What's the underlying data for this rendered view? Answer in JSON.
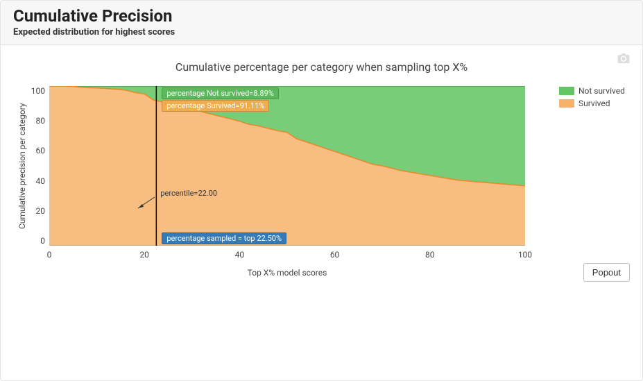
{
  "header": {
    "title": "Cumulative Precision",
    "subtitle": "Expected distribution for highest scores"
  },
  "chart": {
    "type": "area",
    "title": "Cumulative percentage per category when sampling top X%",
    "xlabel": "Top X% model scores",
    "ylabel": "Cumulative precision per category",
    "xlim": [
      0,
      100
    ],
    "ylim": [
      0,
      100
    ],
    "xticks": [
      0,
      20,
      40,
      60,
      80,
      100
    ],
    "yticks": [
      0,
      20,
      40,
      60,
      80,
      100
    ],
    "background_color": "#ffffff",
    "series": [
      {
        "name": "Not survived",
        "color": "#62c462",
        "line_color": "#4aa14a",
        "fill_opacity": 0.85,
        "stacked_above": "Survived"
      },
      {
        "name": "Survived",
        "color": "#f6b26b",
        "line_color": "#e8892d",
        "fill_opacity": 0.85,
        "x": [
          0,
          2,
          4,
          6,
          8,
          10,
          12,
          14,
          16,
          18,
          20,
          22,
          24,
          26,
          28,
          30,
          32,
          34,
          36,
          38,
          40,
          42,
          44,
          46,
          48,
          50,
          52,
          54,
          56,
          58,
          60,
          62,
          64,
          66,
          68,
          70,
          72,
          74,
          76,
          78,
          80,
          82,
          84,
          86,
          88,
          90,
          92,
          94,
          96,
          98,
          100
        ],
        "y": [
          100,
          100,
          100,
          99.5,
          99,
          98.8,
          98.5,
          98,
          97.5,
          96,
          95,
          91.11,
          90,
          89,
          88,
          86,
          84,
          82.5,
          81,
          79.5,
          78,
          76,
          75,
          73.5,
          72,
          71,
          67,
          65,
          63,
          61,
          59,
          57,
          55,
          53,
          51,
          50,
          48.5,
          47,
          46,
          45,
          44,
          43,
          42,
          41,
          40.5,
          40,
          39.5,
          39,
          38.5,
          38,
          37.5
        ]
      }
    ],
    "slider": {
      "x": 22.5,
      "line_color": "#000000",
      "line_width": 1.5
    },
    "annotations": {
      "green_label": "percentage Not survived=8.89%",
      "orange_label": "percentage Survived=91.11%",
      "blue_label": "percentage sampled = top 22.50%",
      "percentile_label": "percentile=22.00"
    },
    "legend_position": "right"
  },
  "icons": {
    "camera": "camera-icon"
  },
  "buttons": {
    "popout": "Popout"
  }
}
